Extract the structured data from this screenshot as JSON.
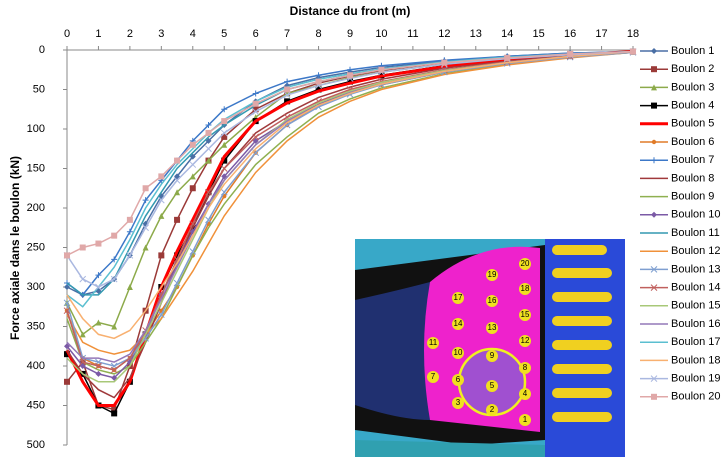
{
  "chart_data": {
    "type": "line",
    "title": "Distance du front (m)",
    "y_label": "Force axiale dans le boulon (kN)",
    "x": [
      0,
      0.5,
      1,
      1.5,
      2,
      2.5,
      3,
      3.5,
      4,
      4.5,
      5,
      6,
      7,
      8,
      9,
      10,
      12,
      14,
      16,
      18
    ],
    "xlim": [
      0,
      18
    ],
    "xticks": [
      0,
      1,
      2,
      3,
      4,
      5,
      6,
      7,
      8,
      9,
      10,
      11,
      12,
      13,
      14,
      15,
      16,
      17,
      18
    ],
    "ylim": [
      0,
      500
    ],
    "yticks": [
      0,
      50,
      100,
      150,
      200,
      250,
      300,
      350,
      400,
      450,
      500
    ],
    "y_reversed": true,
    "x_axis_position": "top",
    "legend": "right",
    "series": [
      {
        "name": "Boulon 1",
        "color": "#4a6fa5",
        "marker": "diamond",
        "values": [
          300,
          310,
          305,
          290,
          260,
          220,
          185,
          160,
          135,
          115,
          95,
          65,
          45,
          35,
          28,
          22,
          14,
          8,
          4,
          2
        ]
      },
      {
        "name": "Boulon 2",
        "color": "#9b3a38",
        "marker": "square",
        "values": [
          420,
          395,
          450,
          455,
          400,
          330,
          260,
          215,
          175,
          140,
          110,
          75,
          55,
          42,
          33,
          26,
          16,
          10,
          5,
          2
        ]
      },
      {
        "name": "Boulon 3",
        "color": "#8caa4a",
        "marker": "triangle",
        "values": [
          320,
          360,
          345,
          350,
          300,
          250,
          210,
          180,
          160,
          140,
          120,
          85,
          55,
          45,
          35,
          28,
          18,
          11,
          6,
          2
        ]
      },
      {
        "name": "Boulon 4",
        "color": "#000000",
        "marker": "square",
        "values": [
          385,
          410,
          450,
          460,
          420,
          360,
          300,
          260,
          225,
          180,
          140,
          90,
          65,
          50,
          40,
          32,
          20,
          12,
          6,
          2
        ]
      },
      {
        "name": "Boulon 5",
        "color": "#ff0000",
        "marker": "none",
        "values": [
          380,
          420,
          450,
          450,
          420,
          360,
          300,
          255,
          215,
          175,
          135,
          90,
          67,
          52,
          42,
          33,
          21,
          12,
          6,
          2
        ]
      },
      {
        "name": "Boulon 6",
        "color": "#e07b28",
        "marker": "circle",
        "values": [
          330,
          390,
          400,
          405,
          390,
          360,
          330,
          300,
          260,
          220,
          185,
          130,
          95,
          70,
          55,
          44,
          28,
          17,
          9,
          3
        ]
      },
      {
        "name": "Boulon 7",
        "color": "#3c78c8",
        "marker": "plus",
        "values": [
          295,
          310,
          285,
          265,
          230,
          190,
          165,
          140,
          115,
          95,
          75,
          55,
          40,
          32,
          25,
          20,
          13,
          8,
          4,
          2
        ]
      },
      {
        "name": "Boulon 8",
        "color": "#a0393b",
        "marker": "none",
        "values": [
          380,
          410,
          430,
          440,
          415,
          370,
          320,
          270,
          225,
          185,
          150,
          105,
          80,
          60,
          47,
          37,
          23,
          14,
          7,
          2
        ]
      },
      {
        "name": "Boulon 9",
        "color": "#8fb050",
        "marker": "none",
        "values": [
          340,
          395,
          405,
          410,
          400,
          370,
          340,
          300,
          260,
          225,
          195,
          145,
          110,
          80,
          62,
          48,
          30,
          18,
          9,
          3
        ]
      },
      {
        "name": "Boulon 10",
        "color": "#7b5aa6",
        "marker": "diamond",
        "values": [
          375,
          400,
          410,
          415,
          395,
          360,
          310,
          270,
          230,
          195,
          160,
          115,
          90,
          68,
          53,
          42,
          26,
          15,
          8,
          2
        ]
      },
      {
        "name": "Boulon 11",
        "color": "#3399b0",
        "marker": "none",
        "values": [
          295,
          310,
          310,
          290,
          250,
          210,
          180,
          150,
          130,
          110,
          95,
          70,
          50,
          40,
          32,
          25,
          15,
          9,
          5,
          2
        ]
      },
      {
        "name": "Boulon 12",
        "color": "#f0913a",
        "marker": "none",
        "values": [
          335,
          370,
          380,
          385,
          380,
          360,
          340,
          310,
          280,
          245,
          210,
          155,
          115,
          85,
          65,
          50,
          31,
          19,
          10,
          3
        ]
      },
      {
        "name": "Boulon 13",
        "color": "#7f9fd0",
        "marker": "x",
        "values": [
          320,
          390,
          395,
          400,
          390,
          365,
          335,
          295,
          255,
          215,
          180,
          130,
          95,
          72,
          56,
          44,
          28,
          17,
          9,
          3
        ]
      },
      {
        "name": "Boulon 14",
        "color": "#c0605e",
        "marker": "x",
        "values": [
          330,
          395,
          400,
          405,
          390,
          355,
          310,
          265,
          220,
          180,
          150,
          110,
          85,
          65,
          50,
          40,
          25,
          15,
          8,
          2
        ]
      },
      {
        "name": "Boulon 15",
        "color": "#a8c878",
        "marker": "none",
        "values": [
          390,
          410,
          420,
          420,
          400,
          360,
          320,
          280,
          240,
          200,
          165,
          120,
          88,
          67,
          52,
          41,
          26,
          16,
          8,
          2
        ]
      },
      {
        "name": "Boulon 16",
        "color": "#9478b8",
        "marker": "none",
        "values": [
          370,
          390,
          390,
          395,
          385,
          355,
          315,
          275,
          235,
          195,
          165,
          120,
          90,
          70,
          54,
          43,
          27,
          16,
          8,
          2
        ]
      },
      {
        "name": "Boulon 17",
        "color": "#5bbfd0",
        "marker": "none",
        "values": [
          310,
          325,
          300,
          275,
          240,
          200,
          170,
          145,
          125,
          105,
          88,
          65,
          47,
          37,
          30,
          24,
          15,
          9,
          5,
          2
        ]
      },
      {
        "name": "Boulon 18",
        "color": "#f8b070",
        "marker": "none",
        "values": [
          310,
          340,
          360,
          365,
          355,
          330,
          300,
          270,
          235,
          200,
          170,
          125,
          92,
          70,
          55,
          43,
          27,
          16,
          8,
          2
        ]
      },
      {
        "name": "Boulon 19",
        "color": "#aab8e0",
        "marker": "x",
        "values": [
          260,
          290,
          300,
          290,
          260,
          225,
          190,
          165,
          145,
          125,
          105,
          78,
          57,
          45,
          36,
          28,
          18,
          11,
          6,
          2
        ]
      },
      {
        "name": "Boulon 20",
        "color": "#e0a8a8",
        "marker": "square",
        "values": [
          260,
          250,
          245,
          235,
          215,
          175,
          160,
          140,
          120,
          105,
          90,
          68,
          50,
          40,
          32,
          25,
          16,
          10,
          5,
          2
        ]
      }
    ]
  },
  "inset": {
    "labels": [
      "1",
      "2",
      "3",
      "4",
      "5",
      "6",
      "7",
      "8",
      "9",
      "10",
      "11",
      "12",
      "13",
      "14",
      "15",
      "16",
      "17",
      "18",
      "19",
      "20"
    ]
  }
}
